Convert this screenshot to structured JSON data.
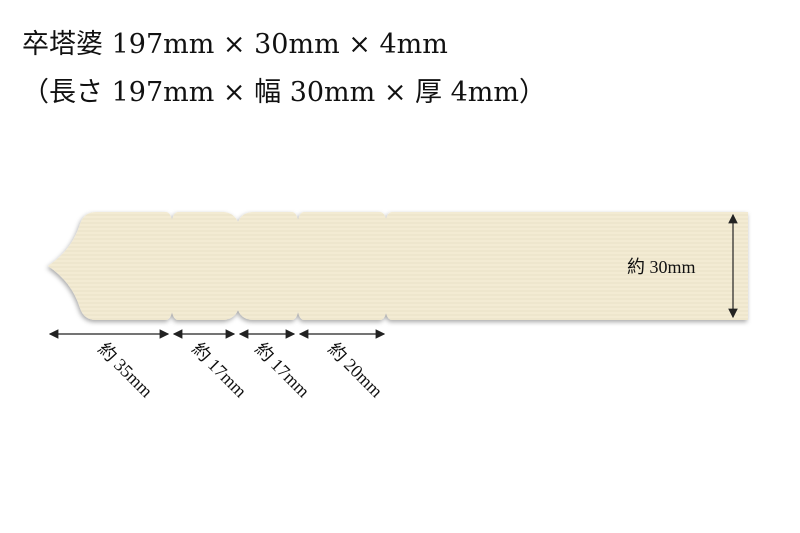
{
  "title": {
    "line1": "卒塔婆 197mm × 30mm × 4mm",
    "line2": "（長さ 197mm × 幅 30mm × 厚 4mm）"
  },
  "dimensions": {
    "width_label": "約 30mm",
    "segments": [
      "約 35mm",
      "約 17mm",
      "約 17mm",
      "約 20mm"
    ]
  },
  "colors": {
    "wood": "#f3ebd3",
    "wood_grain": "#e6dcbf",
    "arrow": "#222222"
  }
}
